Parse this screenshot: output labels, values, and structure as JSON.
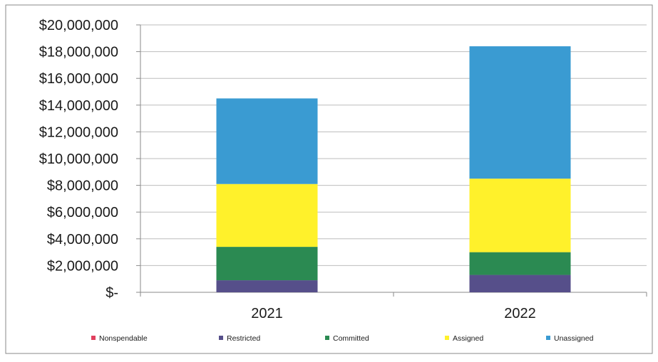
{
  "chart_data": {
    "type": "bar",
    "stacked": true,
    "title": "",
    "xlabel": "",
    "ylabel": "",
    "categories": [
      "2021",
      "2022"
    ],
    "ylim": [
      0,
      20000000
    ],
    "y_ticks": [
      0,
      2000000,
      4000000,
      6000000,
      8000000,
      10000000,
      12000000,
      14000000,
      16000000,
      18000000,
      20000000
    ],
    "y_tick_labels": [
      "$-",
      "$2,000,000",
      "$4,000,000",
      "$6,000,000",
      "$8,000,000",
      "$10,000,000",
      "$12,000,000",
      "$14,000,000",
      "$16,000,000",
      "$18,000,000",
      "$20,000,000"
    ],
    "grid": true,
    "legend_position": "bottom",
    "series": [
      {
        "name": "Nonspendable",
        "color": "#e0405e",
        "values": [
          0,
          0
        ]
      },
      {
        "name": "Restricted",
        "color": "#564f8a",
        "values": [
          900000,
          1300000
        ]
      },
      {
        "name": "Committed",
        "color": "#2b8a52",
        "values": [
          2500000,
          1700000
        ]
      },
      {
        "name": "Assigned",
        "color": "#fff12b",
        "values": [
          4700000,
          5500000
        ]
      },
      {
        "name": "Unassigned",
        "color": "#3a9bd2",
        "values": [
          6400000,
          9900000
        ]
      }
    ]
  }
}
